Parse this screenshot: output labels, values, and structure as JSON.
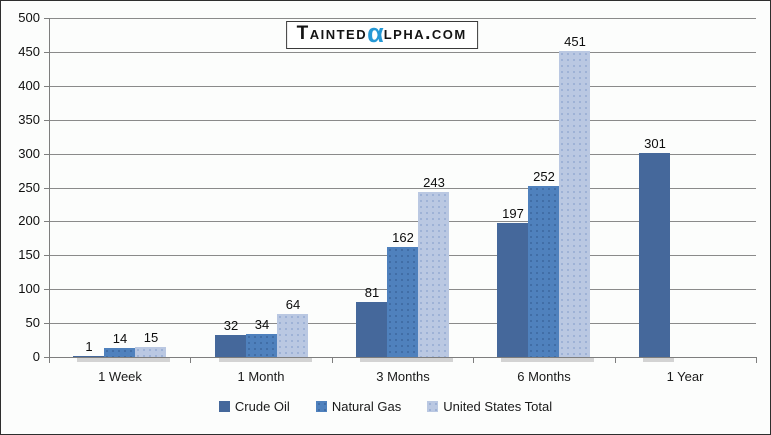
{
  "logo": {
    "prefix": "Tainted",
    "alpha": "α",
    "suffix": "lpha.com",
    "alpha_color": "#2598D5"
  },
  "chart_data": {
    "type": "bar",
    "title": "",
    "categories": [
      "1 Week",
      "1 Month",
      "3 Months",
      "6 Months",
      "1 Year"
    ],
    "series": [
      {
        "name": "Crude Oil",
        "color": "#45689B",
        "values": [
          1,
          32,
          81,
          197,
          301
        ]
      },
      {
        "name": "Natural Gas",
        "color": "#4F81BD",
        "values": [
          14,
          34,
          162,
          252,
          null
        ]
      },
      {
        "name": "United States Total",
        "color": "#BAC8E2",
        "values": [
          15,
          64,
          243,
          451,
          null
        ]
      }
    ],
    "xlabel": "",
    "ylabel": "",
    "ylim": [
      0,
      500
    ],
    "yticks": [
      0,
      50,
      100,
      150,
      200,
      250,
      300,
      350,
      400,
      450,
      500
    ],
    "grid": true,
    "legend_position": "bottom",
    "data_labels": true
  }
}
